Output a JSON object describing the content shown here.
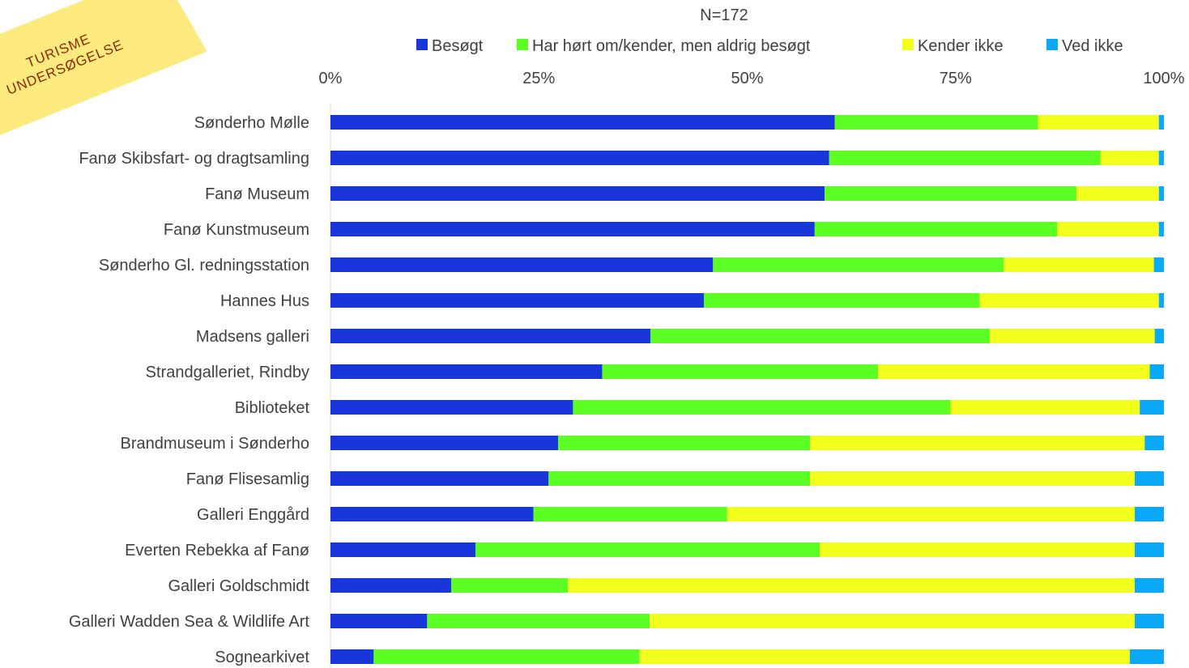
{
  "stamp": {
    "line1": "TURISME",
    "line2": "UNDERSØGELSE",
    "color": "#FCEA7E"
  },
  "chart_data": {
    "type": "bar",
    "orientation": "horizontal",
    "stacked": true,
    "percent_stacked": true,
    "title": "N=172",
    "xlim": [
      0,
      100
    ],
    "x_ticks": [
      "0%",
      "25%",
      "50%",
      "75%",
      "100%"
    ],
    "x_axis_position": "top",
    "legend_position": "top",
    "grid": false,
    "categories": [
      "Sønderho Mølle",
      "Fanø Skibsfart- og dragtsamling",
      "Fanø Museum",
      "Fanø Kunstmuseum",
      "Sønderho Gl. redningsstation",
      "Hannes Hus",
      "Madsens galleri",
      "Strandgalleriet, Rindby",
      "Biblioteket",
      "Brandmuseum i Sønderho",
      "Fanø Flisesamlig",
      "Galleri Enggård",
      "Everten Rebekka af Fanø",
      "Galleri Goldschmidt",
      "Galleri Wadden Sea & Wildlife Art",
      "Sognearkivet"
    ],
    "series": [
      {
        "name": "Besøgt",
        "color": "#1836DA",
        "values": [
          60.5,
          59.9,
          59.3,
          58.1,
          45.9,
          44.8,
          38.4,
          32.6,
          29.1,
          27.3,
          26.2,
          24.4,
          17.4,
          14.5,
          11.6,
          5.2
        ]
      },
      {
        "name": "Har hørt om/kender, men aldrig besøgt",
        "color": "#5BFF24",
        "values": [
          24.4,
          32.6,
          30.2,
          29.1,
          34.9,
          33.1,
          40.7,
          33.1,
          45.3,
          30.2,
          31.4,
          23.3,
          41.3,
          14.0,
          26.7,
          32.0
        ]
      },
      {
        "name": "Kender ikke",
        "color": "#F2FF1C",
        "values": [
          14.5,
          7.0,
          9.9,
          12.2,
          18.0,
          21.5,
          19.8,
          32.6,
          22.7,
          40.1,
          39.0,
          49.0,
          37.8,
          68.0,
          58.2,
          59.0
        ]
      },
      {
        "name": "Ved ikke",
        "color": "#0AA9F7",
        "values": [
          0.6,
          0.6,
          0.6,
          0.6,
          1.2,
          0.6,
          1.1,
          1.7,
          2.9,
          2.3,
          3.5,
          3.5,
          3.5,
          3.5,
          3.5,
          4.1
        ]
      }
    ]
  }
}
